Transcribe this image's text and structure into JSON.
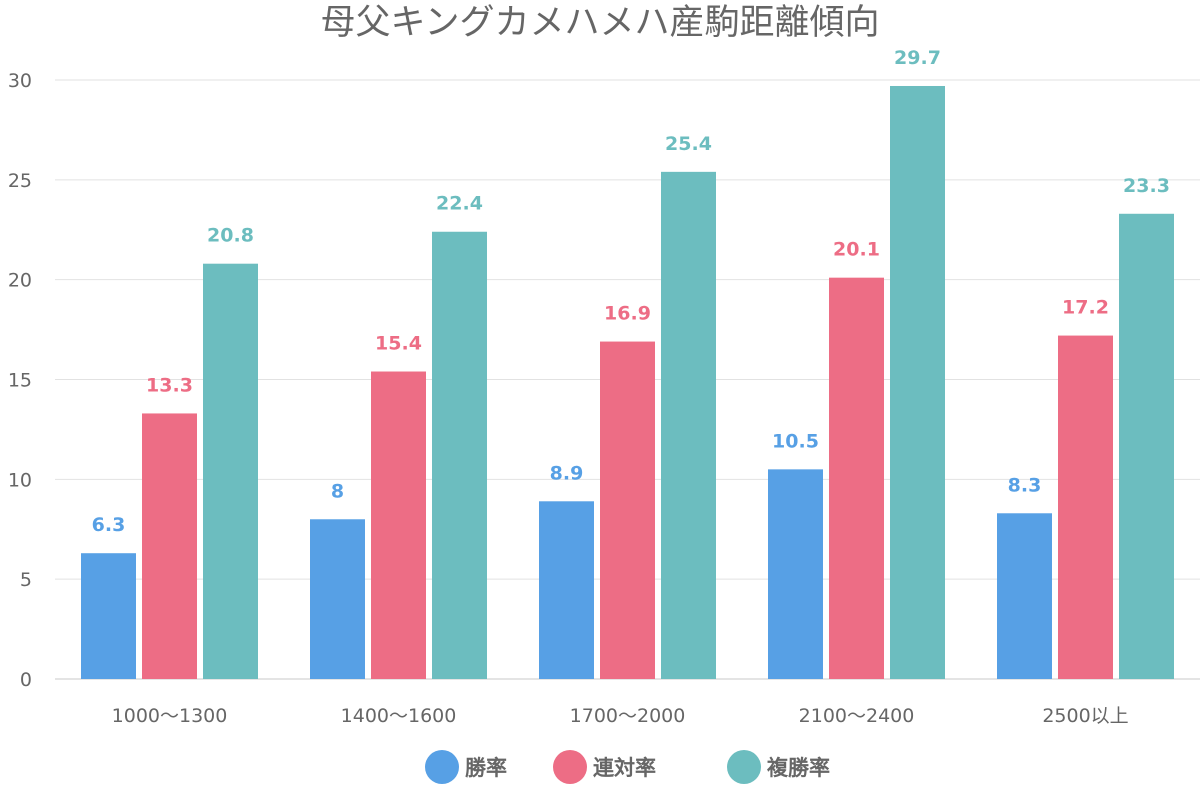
{
  "chart_data": {
    "type": "bar",
    "title": "母父キングカメハメハ産駒距離傾向",
    "categories": [
      "1000〜1300",
      "1400〜1600",
      "1700〜2000",
      "2100〜2400",
      "2500以上"
    ],
    "series": [
      {
        "name": "勝率",
        "color": "#57a0e5",
        "values": [
          6.3,
          8,
          8.9,
          10.5,
          8.3
        ]
      },
      {
        "name": "連対率",
        "color": "#ed6d85",
        "values": [
          13.3,
          15.4,
          16.9,
          20.1,
          17.2
        ]
      },
      {
        "name": "複勝率",
        "color": "#6cbdbf",
        "values": [
          20.8,
          22.4,
          25.4,
          29.7,
          23.3
        ]
      }
    ],
    "ylim": [
      0,
      30
    ],
    "yticks": [
      0,
      5,
      10,
      15,
      20,
      25,
      30
    ],
    "xlabel": "",
    "ylabel": "",
    "grid": true,
    "legend": "bottom"
  }
}
